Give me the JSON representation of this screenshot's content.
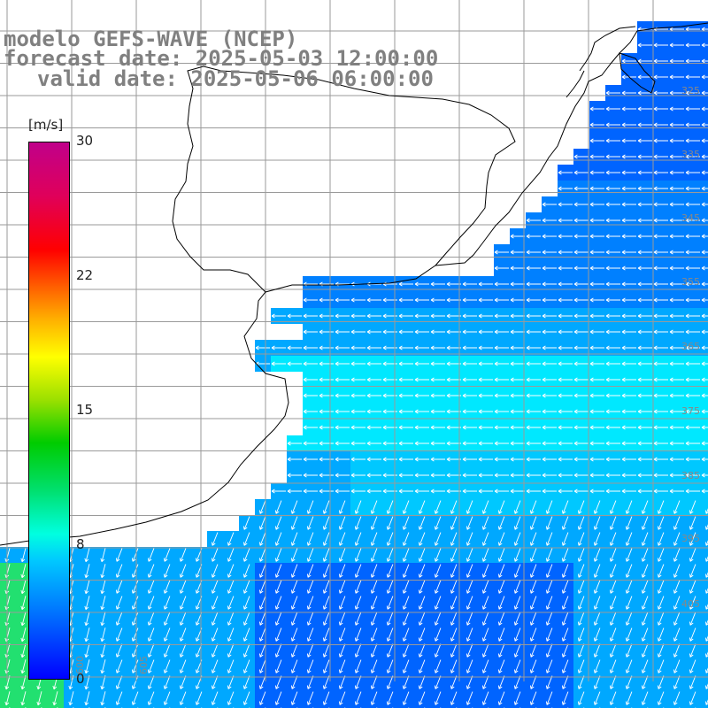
{
  "header": {
    "model_line": "modelo GEFS-WAVE (NCEP)",
    "forecast_line": "forecast date: 2025-05-03 12:00:00",
    "valid_line": "valid date: 2025-05-06 06:00:00"
  },
  "colorbar": {
    "unit": "[m/s]",
    "ticks": [
      "30",
      "22",
      "15",
      "8",
      "0"
    ],
    "min": 0,
    "max": 30,
    "colors": [
      "#0000ff",
      "#0070ff",
      "#00c8ff",
      "#00ffe0",
      "#00e070",
      "#00cc00",
      "#9be000",
      "#ffff00",
      "#ffb000",
      "#ff6000",
      "#ff0000",
      "#e0005a",
      "#c0008a"
    ]
  },
  "grid_labels": {
    "lat": [
      "325",
      "335",
      "345",
      "355",
      "365",
      "375",
      "385",
      "395",
      "405"
    ],
    "lon": [
      "600",
      "605"
    ]
  },
  "field": {
    "dominant_color_ocean": "#00a8ff",
    "strong_color": "#00e8ff",
    "weak_color": "#0064ff",
    "green_color": "#22e070",
    "arrow_color": "#ffffff",
    "land_color": "#ffffff",
    "coast_color": "#000000",
    "grid_color": "#9a9a9a"
  }
}
